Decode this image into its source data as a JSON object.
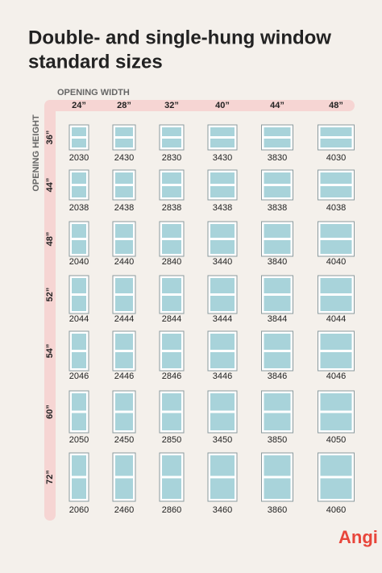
{
  "header": {
    "title_line1": "Double- and single-hung window",
    "title_line2": "standard sizes"
  },
  "axes": {
    "width_label": "OPENING WIDTH",
    "height_label": "OPENING HEIGHT"
  },
  "widths": [
    "24”",
    "28”",
    "32”",
    "40”",
    "44”",
    "48”"
  ],
  "heights": [
    "36”",
    "44”",
    "48”",
    "52”",
    "54”",
    "60”",
    "72”"
  ],
  "table": {
    "rows": [
      [
        "2030",
        "2430",
        "2830",
        "3430",
        "3830",
        "4030"
      ],
      [
        "2038",
        "2438",
        "2838",
        "3438",
        "3838",
        "4038"
      ],
      [
        "2040",
        "2440",
        "2840",
        "3440",
        "3840",
        "4040"
      ],
      [
        "2044",
        "2444",
        "2844",
        "3444",
        "3844",
        "4044"
      ],
      [
        "2046",
        "2446",
        "2846",
        "3446",
        "3846",
        "4046"
      ],
      [
        "2050",
        "2450",
        "2850",
        "3450",
        "3850",
        "4050"
      ],
      [
        "2060",
        "2460",
        "2860",
        "3460",
        "3860",
        "4060"
      ]
    ]
  },
  "brand": "Angi"
}
